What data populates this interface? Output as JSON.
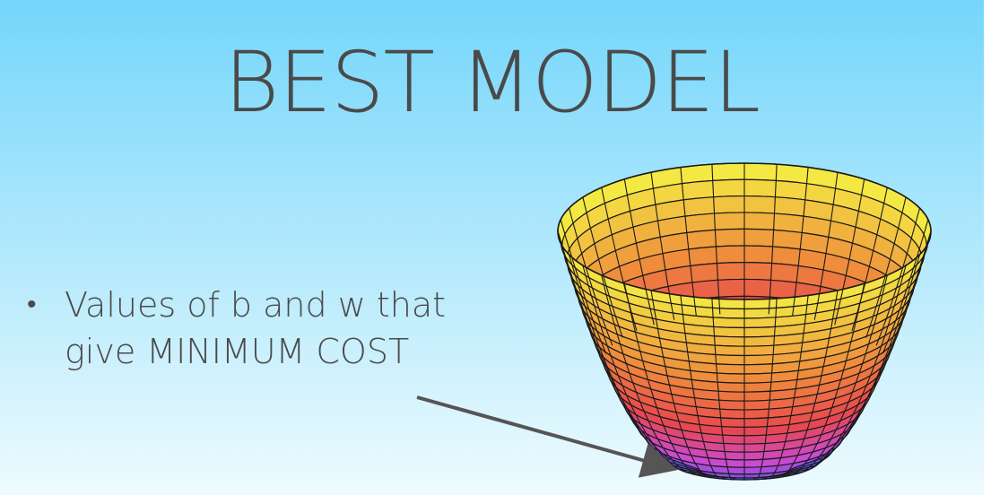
{
  "slide": {
    "title": "BEST MODEL",
    "bullet": {
      "line1": "Values of b and w that",
      "line2": "give MINIMUM COST"
    }
  },
  "colors": {
    "title_text": "#4a4a4a",
    "arrow": "#555555",
    "bowl_top": "#f4e842",
    "bowl_mid": "#e8474e",
    "bowl_bottom": "#4b55e8",
    "grid_line": "#1a1a1a"
  },
  "figure": {
    "type": "paraboloid-surface",
    "grid_rings": 22,
    "grid_segments": 36
  }
}
